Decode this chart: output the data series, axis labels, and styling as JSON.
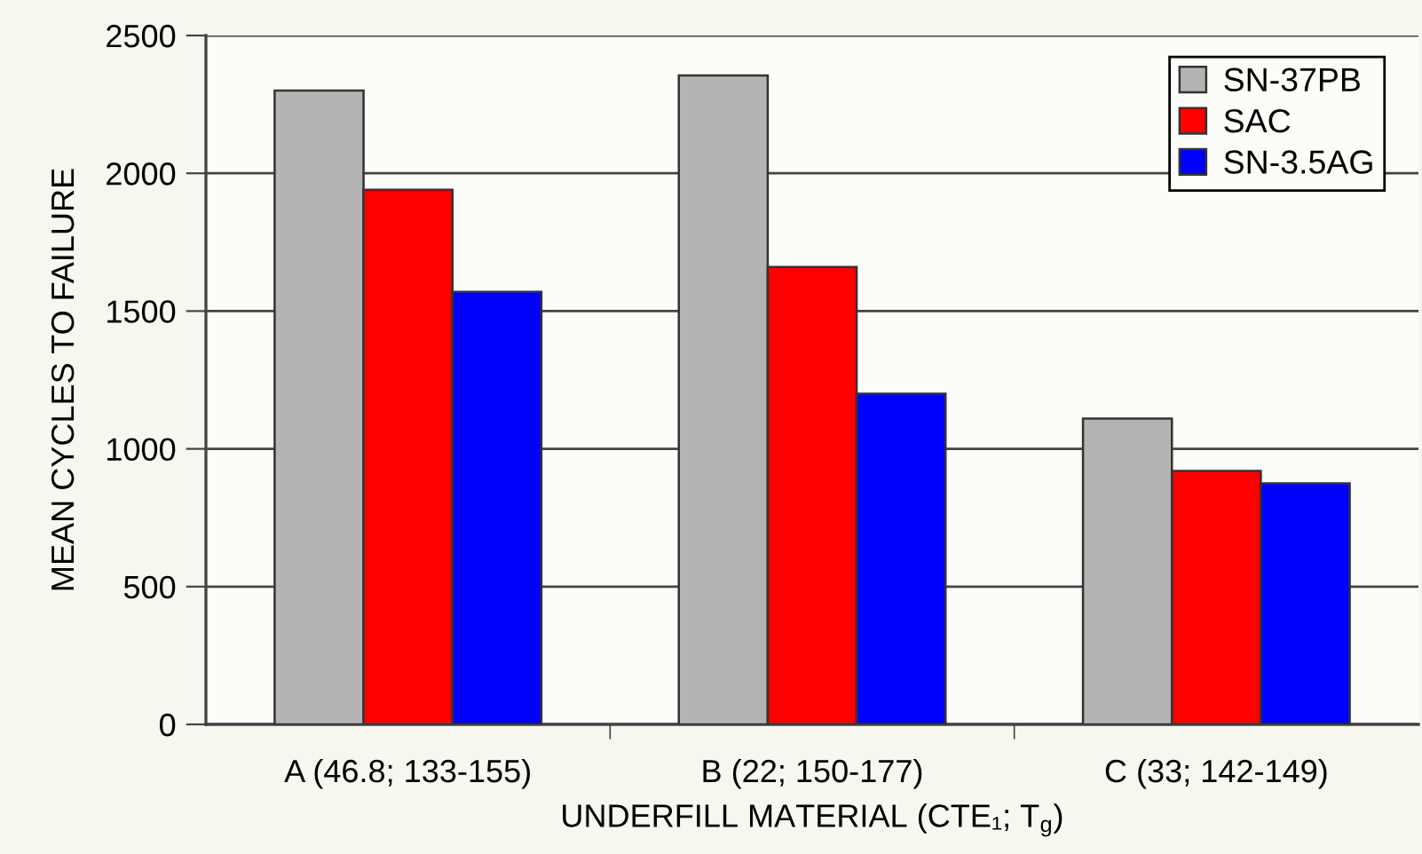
{
  "chart_data": {
    "type": "bar",
    "xlabel": "UNDERFILL MATERIAL (CTE₁; T$_{g}$)",
    "ylabel": "MEAN CYCLES TO FAILURE",
    "categories": [
      "A (46.8; 133-155)",
      "B (22; 150-177)",
      "C (33; 142-149)"
    ],
    "series": [
      {
        "name": "SN-37PB",
        "color": "#b4b4b4",
        "values": [
          2300,
          2355,
          1110
        ]
      },
      {
        "name": "SAC",
        "color": "#ff0000",
        "values": [
          1940,
          1660,
          920
        ]
      },
      {
        "name": "SN-3.5AG",
        "color": "#0000ff",
        "values": [
          1570,
          1200,
          875
        ]
      }
    ],
    "ylim": [
      0,
      2500
    ],
    "yticks": [
      0,
      500,
      1000,
      1500,
      2000,
      2500
    ],
    "grid": "y",
    "legend": "top right"
  }
}
